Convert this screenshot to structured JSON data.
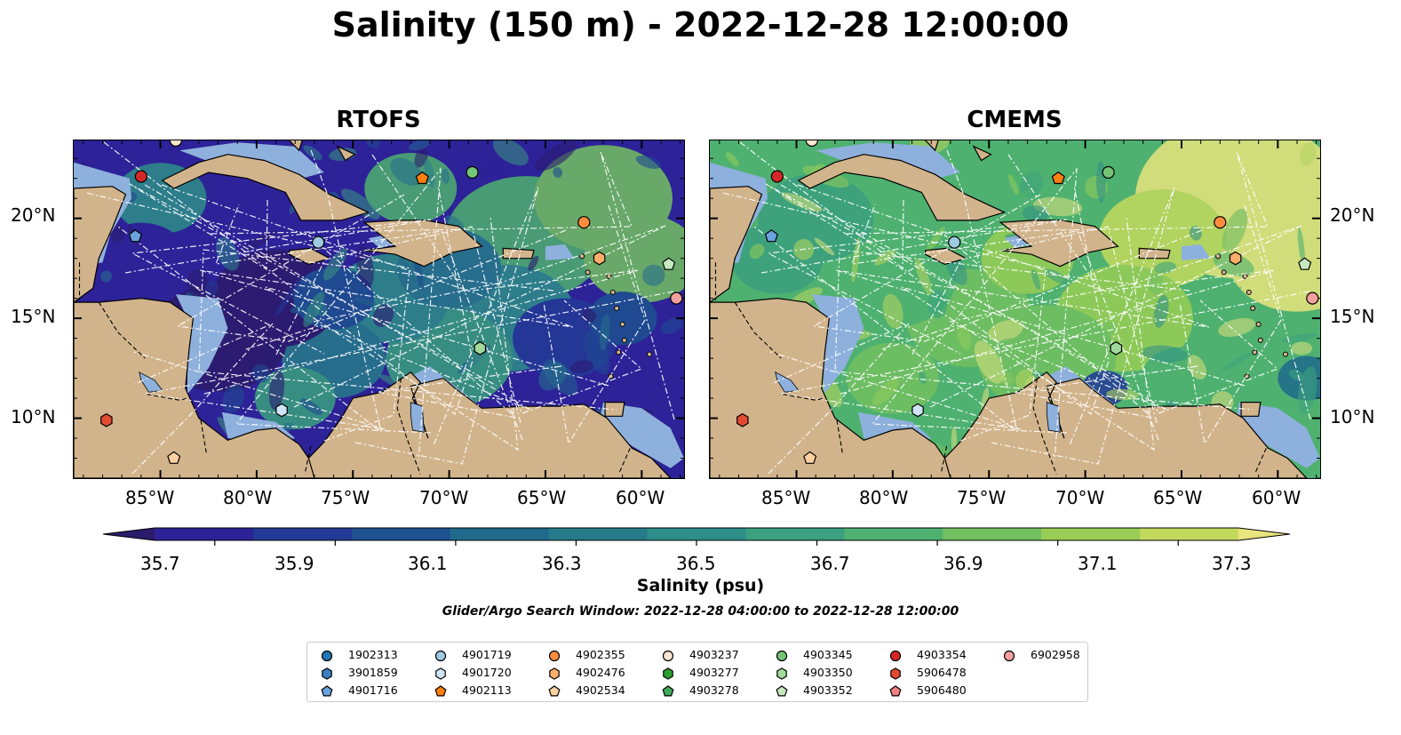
{
  "title": "Salinity (150 m) - 2022-12-28 12:00:00",
  "panels": [
    {
      "title": "RTOFS",
      "palette": "low"
    },
    {
      "title": "CMEMS",
      "palette": "high"
    }
  ],
  "map": {
    "lon_range": [
      -89.5,
      -57.8
    ],
    "lat_range": [
      7.0,
      23.9
    ],
    "lat_ticks": [
      "20°N",
      "15°N",
      "10°N"
    ],
    "lat_values": [
      20,
      15,
      10
    ],
    "lon_ticks": [
      "85°W",
      "80°W",
      "75°W",
      "70°W",
      "65°W",
      "60°W"
    ],
    "lon_values": [
      -85,
      -80,
      -75,
      -70,
      -65,
      -60
    ],
    "land_color": "#d2b48c",
    "shelf_color": "#8eb0dc"
  },
  "colorbar": {
    "label": "Salinity (psu)",
    "ticks": [
      "35.7",
      "35.9",
      "36.1",
      "36.3",
      "36.5",
      "36.7",
      "36.9",
      "37.1",
      "37.3"
    ],
    "min": 35.6,
    "max": 37.4,
    "colors": [
      "#2b1b6b",
      "#2d2298",
      "#233b96",
      "#1d5190",
      "#1f6a8c",
      "#267b8a",
      "#2e8e89",
      "#3aa07f",
      "#4fb170",
      "#73c061",
      "#98ce55",
      "#c3d95e",
      "#e8e47e"
    ]
  },
  "search_window": "Glider/Argo Search Window: 2022-12-28 04:00:00 to 2022-12-28 12:00:00",
  "floats": [
    {
      "id": "1902313",
      "marker": "circle",
      "color": "#1f77b4",
      "lon": null,
      "lat": null
    },
    {
      "id": "3901859",
      "marker": "hexagon",
      "color": "#3b7fc4",
      "lon": null,
      "lat": null
    },
    {
      "id": "4901716",
      "marker": "pentagon",
      "color": "#6aa3de",
      "lon": -86.3,
      "lat": 19.1
    },
    {
      "id": "4901719",
      "marker": "circle",
      "color": "#9ecae1",
      "lon": -76.8,
      "lat": 18.8
    },
    {
      "id": "4901720",
      "marker": "hexagon",
      "color": "#cfe5f5",
      "lon": -78.7,
      "lat": 10.4
    },
    {
      "id": "4902113",
      "marker": "pentagon",
      "color": "#ff7f0e",
      "lon": -71.4,
      "lat": 22.0
    },
    {
      "id": "4902355",
      "marker": "circle",
      "color": "#fd8d3c",
      "lon": -63.0,
      "lat": 19.8
    },
    {
      "id": "4902476",
      "marker": "hexagon",
      "color": "#fdae6b",
      "lon": -62.2,
      "lat": 18.0
    },
    {
      "id": "4902534",
      "marker": "pentagon",
      "color": "#fdd0a2",
      "lon": -84.3,
      "lat": 8.0
    },
    {
      "id": "4903237",
      "marker": "circle",
      "color": "#fde5d0",
      "lon": -84.2,
      "lat": 23.9
    },
    {
      "id": "4903277",
      "marker": "hexagon",
      "color": "#2ca02c",
      "lon": null,
      "lat": null
    },
    {
      "id": "4903278",
      "marker": "pentagon",
      "color": "#41ab5d",
      "lon": null,
      "lat": null
    },
    {
      "id": "4903345",
      "marker": "circle",
      "color": "#74c476",
      "lon": -68.8,
      "lat": 22.3
    },
    {
      "id": "4903350",
      "marker": "hexagon",
      "color": "#a1d99b",
      "lon": -68.4,
      "lat": 13.5
    },
    {
      "id": "4903352",
      "marker": "pentagon",
      "color": "#c7e9c0",
      "lon": -58.6,
      "lat": 17.7
    },
    {
      "id": "4903354",
      "marker": "circle",
      "color": "#d62728",
      "lon": -86.0,
      "lat": 22.1
    },
    {
      "id": "5906478",
      "marker": "hexagon",
      "color": "#e34a33",
      "lon": -87.8,
      "lat": 9.9
    },
    {
      "id": "5906480",
      "marker": "pentagon",
      "color": "#f08080",
      "lon": null,
      "lat": null
    },
    {
      "id": "6902958",
      "marker": "circle",
      "color": "#f4a0a0",
      "lon": -58.2,
      "lat": 16.0
    }
  ]
}
